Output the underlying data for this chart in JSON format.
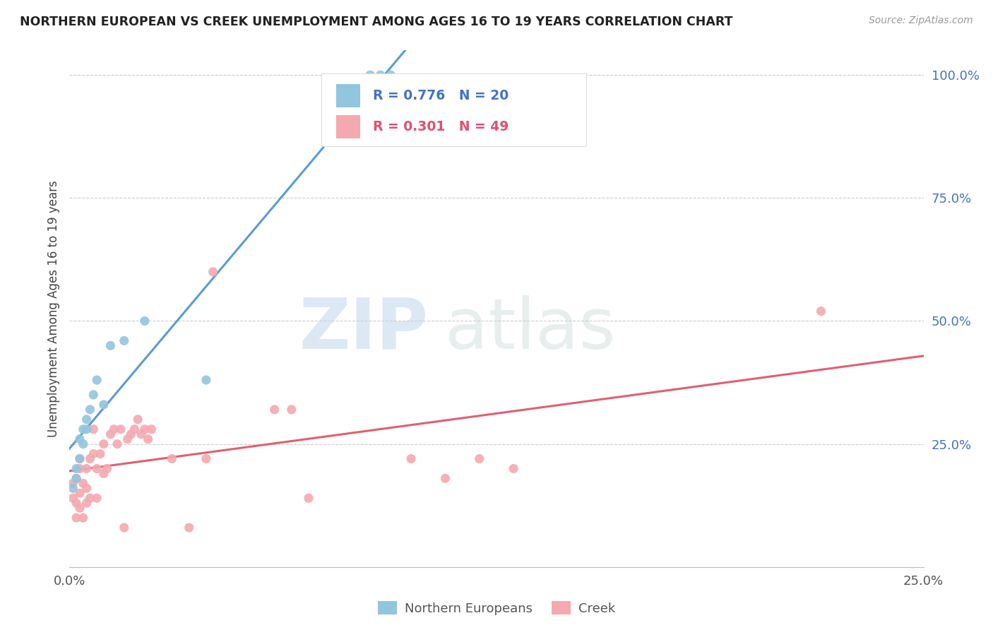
{
  "title": "NORTHERN EUROPEAN VS CREEK UNEMPLOYMENT AMONG AGES 16 TO 19 YEARS CORRELATION CHART",
  "source": "Source: ZipAtlas.com",
  "ylabel": "Unemployment Among Ages 16 to 19 years",
  "xlim": [
    0.0,
    0.25
  ],
  "ylim": [
    0.0,
    1.05
  ],
  "legend_blue_r": "R = 0.776",
  "legend_blue_n": "N = 20",
  "legend_pink_r": "R = 0.301",
  "legend_pink_n": "N = 49",
  "blue_color": "#92c5de",
  "pink_color": "#f4a9b0",
  "blue_line_color": "#5b9bd5",
  "pink_line_color": "#e06070",
  "watermark_zip": "ZIP",
  "watermark_atlas": "atlas",
  "northern_europeans_x": [
    0.001,
    0.002,
    0.002,
    0.003,
    0.003,
    0.004,
    0.004,
    0.005,
    0.005,
    0.006,
    0.007,
    0.008,
    0.01,
    0.012,
    0.016,
    0.022,
    0.04,
    0.088,
    0.091,
    0.094
  ],
  "northern_europeans_y": [
    0.16,
    0.18,
    0.2,
    0.22,
    0.26,
    0.25,
    0.28,
    0.3,
    0.28,
    0.32,
    0.35,
    0.38,
    0.33,
    0.45,
    0.46,
    0.5,
    0.38,
    1.0,
    1.0,
    1.0
  ],
  "creek_x": [
    0.001,
    0.001,
    0.002,
    0.002,
    0.002,
    0.003,
    0.003,
    0.003,
    0.003,
    0.004,
    0.004,
    0.005,
    0.005,
    0.005,
    0.006,
    0.006,
    0.007,
    0.007,
    0.008,
    0.008,
    0.009,
    0.01,
    0.01,
    0.011,
    0.012,
    0.013,
    0.014,
    0.015,
    0.016,
    0.017,
    0.018,
    0.019,
    0.02,
    0.021,
    0.022,
    0.023,
    0.024,
    0.03,
    0.035,
    0.04,
    0.042,
    0.06,
    0.065,
    0.07,
    0.1,
    0.11,
    0.12,
    0.13,
    0.22
  ],
  "creek_y": [
    0.17,
    0.14,
    0.18,
    0.13,
    0.1,
    0.12,
    0.15,
    0.2,
    0.22,
    0.1,
    0.17,
    0.16,
    0.13,
    0.2,
    0.14,
    0.22,
    0.23,
    0.28,
    0.2,
    0.14,
    0.23,
    0.19,
    0.25,
    0.2,
    0.27,
    0.28,
    0.25,
    0.28,
    0.08,
    0.26,
    0.27,
    0.28,
    0.3,
    0.27,
    0.28,
    0.26,
    0.28,
    0.22,
    0.08,
    0.22,
    0.6,
    0.32,
    0.32,
    0.14,
    0.22,
    0.18,
    0.22,
    0.2,
    0.52
  ]
}
